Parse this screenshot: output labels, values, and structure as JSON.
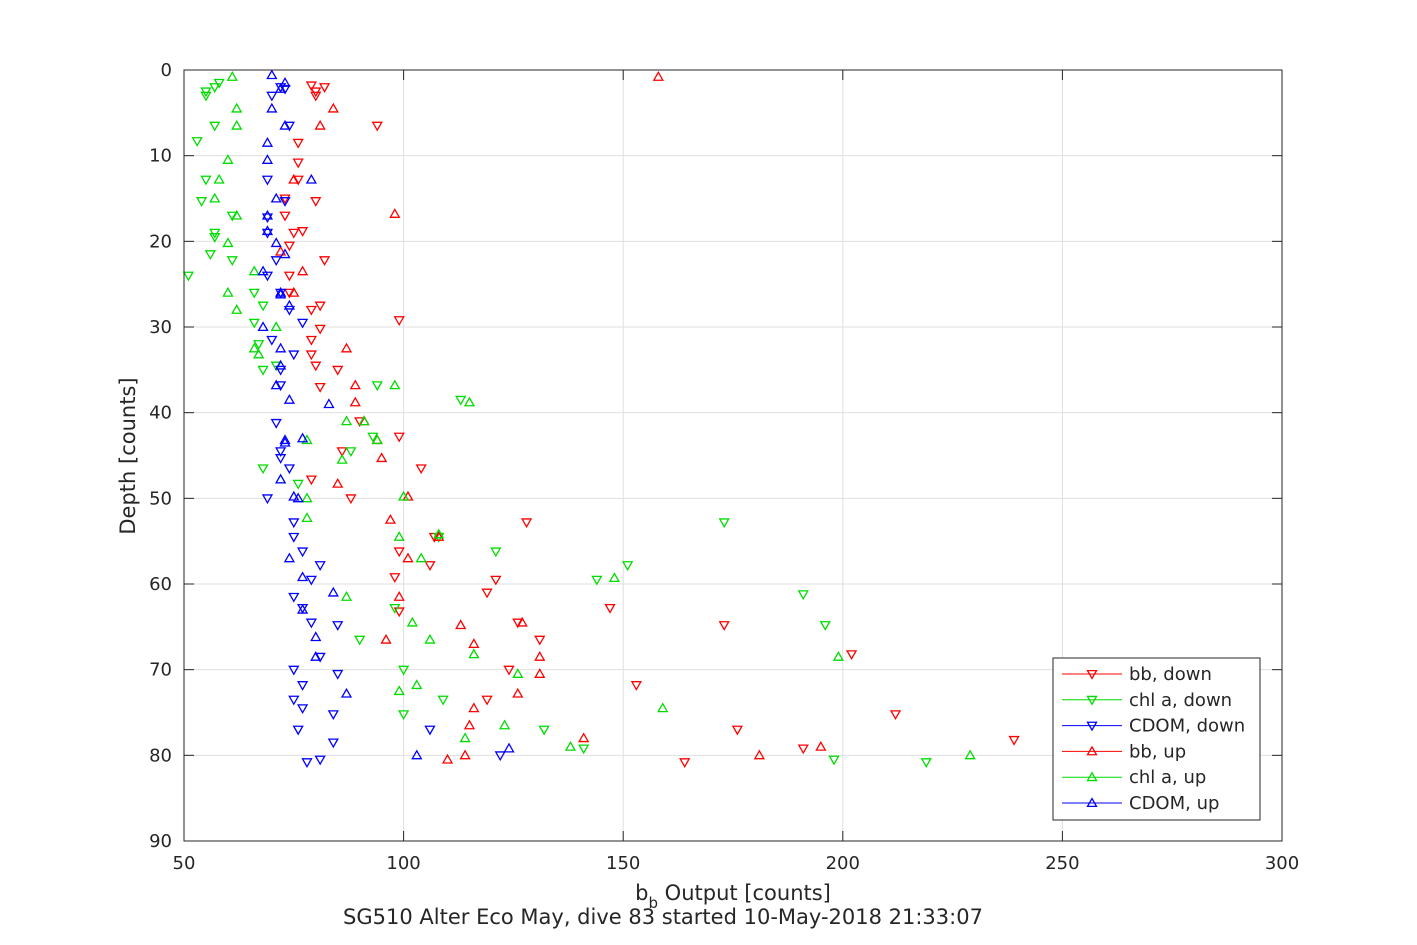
{
  "chart_data": {
    "type": "scatter",
    "title": "",
    "xlabel_main": "b",
    "xlabel_sub": "b",
    "xlabel_rest": " Output [counts]",
    "ylabel": "Depth [counts]",
    "caption": "SG510 Alter Eco May, dive 83 started 10-May-2018 21:33:07",
    "xlim": [
      50,
      300
    ],
    "ylim": [
      0,
      90
    ],
    "y_reversed": true,
    "grid": true,
    "legend_position": "bottom-right",
    "xticks": [
      "50",
      "100",
      "150",
      "200",
      "250",
      "300"
    ],
    "yticks": [
      "0",
      "10",
      "20",
      "30",
      "40",
      "50",
      "60",
      "70",
      "80",
      "90"
    ],
    "series": [
      {
        "name": "bb, down",
        "color": "#ff0000",
        "marker": "triangle-down",
        "points": [
          [
            79,
            1.8
          ],
          [
            82,
            2
          ],
          [
            80,
            2.5
          ],
          [
            80,
            3
          ],
          [
            94,
            6.5
          ],
          [
            76,
            8.5
          ],
          [
            76,
            10.8
          ],
          [
            76,
            12.8
          ],
          [
            73,
            15
          ],
          [
            80,
            15.3
          ],
          [
            73,
            17
          ],
          [
            75,
            19
          ],
          [
            77,
            18.8
          ],
          [
            74,
            20.5
          ],
          [
            82,
            22.2
          ],
          [
            74,
            24
          ],
          [
            74,
            26
          ],
          [
            79,
            28
          ],
          [
            81,
            27.5
          ],
          [
            81,
            30.2
          ],
          [
            79,
            31.5
          ],
          [
            79,
            33.2
          ],
          [
            80,
            34.5
          ],
          [
            85,
            35
          ],
          [
            81,
            37
          ],
          [
            99,
            29.2
          ],
          [
            90,
            41
          ],
          [
            99,
            42.8
          ],
          [
            86,
            44.5
          ],
          [
            104,
            46.5
          ],
          [
            79,
            47.8
          ],
          [
            88,
            50
          ],
          [
            128,
            52.8
          ],
          [
            107,
            54.5
          ],
          [
            99,
            56.2
          ],
          [
            106,
            57.8
          ],
          [
            98,
            59.2
          ],
          [
            121,
            59.5
          ],
          [
            119,
            61
          ],
          [
            147,
            62.8
          ],
          [
            99,
            63.2
          ],
          [
            126,
            64.5
          ],
          [
            173,
            64.8
          ],
          [
            131,
            66.5
          ],
          [
            202,
            68.2
          ],
          [
            124,
            70
          ],
          [
            153,
            71.8
          ],
          [
            119,
            73.5
          ],
          [
            212,
            75.2
          ],
          [
            176,
            77
          ],
          [
            191,
            79.2
          ],
          [
            239,
            78.2
          ],
          [
            164,
            80.8
          ]
        ]
      },
      {
        "name": "chl a, down",
        "color": "#00dd00",
        "marker": "triangle-down",
        "points": [
          [
            58,
            1.5
          ],
          [
            57,
            2
          ],
          [
            55,
            2.5
          ],
          [
            55,
            3
          ],
          [
            57,
            6.5
          ],
          [
            53,
            8.3
          ],
          [
            55,
            12.8
          ],
          [
            54,
            15.3
          ],
          [
            57,
            19
          ],
          [
            57,
            19.5
          ],
          [
            56,
            21.5
          ],
          [
            61,
            22.2
          ],
          [
            51,
            24
          ],
          [
            61,
            17
          ],
          [
            66,
            26
          ],
          [
            68,
            27.5
          ],
          [
            66,
            29.5
          ],
          [
            68,
            35
          ],
          [
            71,
            34.5
          ],
          [
            67,
            32
          ],
          [
            68,
            46.5
          ],
          [
            76,
            48.3
          ],
          [
            113,
            38.5
          ],
          [
            88,
            44.5
          ],
          [
            93,
            42.8
          ],
          [
            94,
            36.8
          ],
          [
            108,
            54.5
          ],
          [
            173,
            52.8
          ],
          [
            121,
            56.2
          ],
          [
            151,
            57.8
          ],
          [
            144,
            59.5
          ],
          [
            191,
            61.2
          ],
          [
            98,
            62.8
          ],
          [
            196,
            64.8
          ],
          [
            90,
            66.5
          ],
          [
            100,
            70
          ],
          [
            100,
            75.2
          ],
          [
            109,
            73.5
          ],
          [
            132,
            77
          ],
          [
            141,
            79.2
          ],
          [
            198,
            80.5
          ],
          [
            219,
            80.8
          ]
        ]
      },
      {
        "name": "CDOM, down",
        "color": "#0000ff",
        "marker": "triangle-down",
        "points": [
          [
            72,
            2
          ],
          [
            73,
            2.2
          ],
          [
            70,
            3
          ],
          [
            74,
            6.5
          ],
          [
            69,
            12.8
          ],
          [
            73,
            15.3
          ],
          [
            69,
            17.2
          ],
          [
            69,
            19
          ],
          [
            71,
            22.2
          ],
          [
            69,
            24
          ],
          [
            72,
            26
          ],
          [
            74,
            28
          ],
          [
            77,
            29.5
          ],
          [
            70,
            31.5
          ],
          [
            75,
            33.2
          ],
          [
            72,
            35
          ],
          [
            72,
            36.8
          ],
          [
            71,
            41.2
          ],
          [
            72,
            44.5
          ],
          [
            74,
            46.5
          ],
          [
            72,
            45.3
          ],
          [
            69,
            50
          ],
          [
            75,
            52.8
          ],
          [
            75,
            54.5
          ],
          [
            77,
            56.2
          ],
          [
            81,
            57.8
          ],
          [
            79,
            59.5
          ],
          [
            75,
            61.5
          ],
          [
            77,
            62.8
          ],
          [
            85,
            64.8
          ],
          [
            79,
            64.5
          ],
          [
            81,
            68.5
          ],
          [
            75,
            70
          ],
          [
            85,
            70.5
          ],
          [
            77,
            71.8
          ],
          [
            75,
            73.5
          ],
          [
            77,
            74.5
          ],
          [
            84,
            75.2
          ],
          [
            76,
            77
          ],
          [
            78,
            80.8
          ],
          [
            84,
            78.5
          ],
          [
            81,
            80.5
          ],
          [
            106,
            77
          ],
          [
            122,
            80
          ]
        ]
      },
      {
        "name": "bb, up",
        "color": "#ff0000",
        "marker": "triangle-up",
        "points": [
          [
            158,
            0.8
          ],
          [
            84,
            4.5
          ],
          [
            81,
            6.5
          ],
          [
            75,
            12.8
          ],
          [
            98,
            16.8
          ],
          [
            72,
            21.2
          ],
          [
            77,
            23.5
          ],
          [
            75,
            26
          ],
          [
            87,
            32.5
          ],
          [
            89,
            36.8
          ],
          [
            89,
            38.8
          ],
          [
            91,
            41
          ],
          [
            94,
            43.2
          ],
          [
            95,
            45.3
          ],
          [
            85,
            48.3
          ],
          [
            101,
            49.8
          ],
          [
            97,
            52.5
          ],
          [
            108,
            54.5
          ],
          [
            101,
            57
          ],
          [
            99,
            61.5
          ],
          [
            96,
            66.5
          ],
          [
            116,
            67
          ],
          [
            113,
            64.8
          ],
          [
            127,
            64.5
          ],
          [
            131,
            68.5
          ],
          [
            126,
            72.8
          ],
          [
            131,
            70.5
          ],
          [
            116,
            74.5
          ],
          [
            115,
            76.5
          ],
          [
            141,
            78
          ],
          [
            114,
            80
          ],
          [
            110,
            80.5
          ],
          [
            181,
            80
          ],
          [
            195,
            79
          ]
        ]
      },
      {
        "name": "chl a, up",
        "color": "#00dd00",
        "marker": "triangle-up",
        "points": [
          [
            61,
            0.8
          ],
          [
            62,
            4.5
          ],
          [
            62,
            6.5
          ],
          [
            60,
            10.5
          ],
          [
            58,
            12.8
          ],
          [
            57,
            15
          ],
          [
            62,
            17
          ],
          [
            60,
            20.2
          ],
          [
            66,
            23.5
          ],
          [
            60,
            26
          ],
          [
            62,
            28
          ],
          [
            71,
            30
          ],
          [
            66,
            32.5
          ],
          [
            67,
            33.2
          ],
          [
            87,
            41
          ],
          [
            91,
            41
          ],
          [
            94,
            43.2
          ],
          [
            86,
            45.5
          ],
          [
            98,
            36.8
          ],
          [
            115,
            38.8
          ],
          [
            78,
            43.2
          ],
          [
            72,
            47.8
          ],
          [
            78,
            50
          ],
          [
            100,
            49.8
          ],
          [
            78,
            52.3
          ],
          [
            108,
            54.2
          ],
          [
            99,
            54.5
          ],
          [
            104,
            57
          ],
          [
            148,
            59.3
          ],
          [
            87,
            61.5
          ],
          [
            102,
            64.5
          ],
          [
            106,
            66.5
          ],
          [
            116,
            68.2
          ],
          [
            126,
            70.5
          ],
          [
            103,
            71.8
          ],
          [
            99,
            72.5
          ],
          [
            159,
            74.5
          ],
          [
            123,
            76.5
          ],
          [
            114,
            78
          ],
          [
            138,
            79
          ],
          [
            199,
            68.5
          ],
          [
            229,
            80
          ]
        ]
      },
      {
        "name": "CDOM, up",
        "color": "#0000ff",
        "marker": "triangle-up",
        "points": [
          [
            70,
            0.6
          ],
          [
            73,
            1.5
          ],
          [
            72,
            2.2
          ],
          [
            70,
            4.5
          ],
          [
            73,
            6.5
          ],
          [
            69,
            8.5
          ],
          [
            69,
            10.5
          ],
          [
            79,
            12.8
          ],
          [
            71,
            15
          ],
          [
            69,
            17
          ],
          [
            69,
            18.8
          ],
          [
            71,
            20.2
          ],
          [
            73,
            21.5
          ],
          [
            68,
            23.5
          ],
          [
            72,
            26
          ],
          [
            72,
            26.2
          ],
          [
            74,
            27.5
          ],
          [
            68,
            30
          ],
          [
            72,
            32.5
          ],
          [
            72,
            34.5
          ],
          [
            71,
            36.8
          ],
          [
            74,
            38.5
          ],
          [
            83,
            39
          ],
          [
            73,
            43.2
          ],
          [
            73,
            43.5
          ],
          [
            77,
            43
          ],
          [
            75,
            49.8
          ],
          [
            72,
            47.8
          ],
          [
            76,
            50
          ],
          [
            74,
            57
          ],
          [
            77,
            59.2
          ],
          [
            84,
            61
          ],
          [
            77,
            63
          ],
          [
            80,
            66.2
          ],
          [
            80,
            68.5
          ],
          [
            87,
            72.8
          ],
          [
            124,
            79.2
          ],
          [
            103,
            80
          ]
        ]
      }
    ]
  }
}
